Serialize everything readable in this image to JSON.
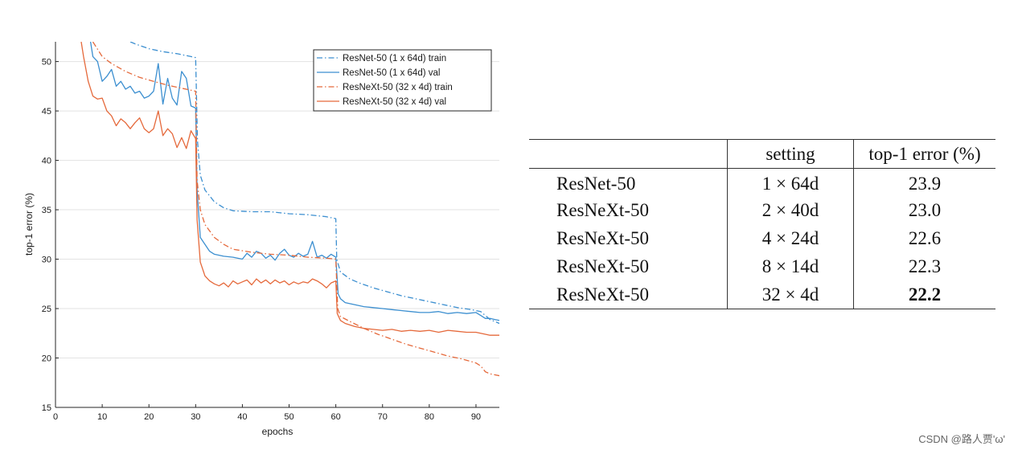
{
  "chart_data": {
    "type": "line",
    "title": "",
    "xlabel": "epochs",
    "ylabel": "top-1 error (%)",
    "xlim": [
      0,
      95
    ],
    "ylim": [
      15,
      52
    ],
    "xticks": [
      0,
      10,
      20,
      30,
      40,
      50,
      60,
      70,
      80,
      90
    ],
    "yticks": [
      15,
      20,
      25,
      30,
      35,
      40,
      45,
      50
    ],
    "grid": "horizontal",
    "legend_position": "top-right",
    "series": [
      {
        "name": "ResNet-50 (1 x 64d) train",
        "color": "#3c8fd0",
        "dash": "dashdot",
        "points": [
          [
            16,
            52
          ],
          [
            17,
            51.8
          ],
          [
            20,
            51.3
          ],
          [
            23,
            51
          ],
          [
            26,
            50.8
          ],
          [
            29,
            50.5
          ],
          [
            30,
            50.4
          ],
          [
            30.4,
            42
          ],
          [
            31,
            38.5
          ],
          [
            32,
            37
          ],
          [
            34,
            35.8
          ],
          [
            36,
            35.2
          ],
          [
            38,
            34.9
          ],
          [
            42,
            34.8
          ],
          [
            46,
            34.8
          ],
          [
            50,
            34.6
          ],
          [
            54,
            34.5
          ],
          [
            58,
            34.3
          ],
          [
            60,
            34.1
          ],
          [
            60.2,
            30
          ],
          [
            61,
            28.7
          ],
          [
            63,
            28
          ],
          [
            65,
            27.6
          ],
          [
            68,
            27.1
          ],
          [
            71,
            26.7
          ],
          [
            74,
            26.3
          ],
          [
            77,
            26
          ],
          [
            80,
            25.7
          ],
          [
            83,
            25.4
          ],
          [
            86,
            25.1
          ],
          [
            89,
            24.9
          ],
          [
            91,
            24.7
          ],
          [
            93,
            23.9
          ],
          [
            95,
            23.5
          ]
        ]
      },
      {
        "name": "ResNet-50 (1 x 64d) val",
        "color": "#3c8fd0",
        "dash": "solid",
        "points": [
          [
            7.5,
            52
          ],
          [
            8,
            50.5
          ],
          [
            9,
            50
          ],
          [
            10,
            48
          ],
          [
            11,
            48.5
          ],
          [
            12,
            49.2
          ],
          [
            13,
            47.5
          ],
          [
            14,
            48
          ],
          [
            15,
            47.2
          ],
          [
            16,
            47.5
          ],
          [
            17,
            46.8
          ],
          [
            18,
            47
          ],
          [
            19,
            46.3
          ],
          [
            20,
            46.5
          ],
          [
            21,
            47
          ],
          [
            22,
            49.8
          ],
          [
            23,
            45.7
          ],
          [
            24,
            48.3
          ],
          [
            25,
            46.3
          ],
          [
            26,
            45.6
          ],
          [
            27,
            49
          ],
          [
            28,
            48.3
          ],
          [
            29,
            45.5
          ],
          [
            30,
            45.3
          ],
          [
            30.3,
            37
          ],
          [
            31,
            32.2
          ],
          [
            32,
            31.5
          ],
          [
            33,
            30.8
          ],
          [
            34,
            30.5
          ],
          [
            36,
            30.3
          ],
          [
            38,
            30.2
          ],
          [
            40,
            30
          ],
          [
            41,
            30.6
          ],
          [
            42,
            30.2
          ],
          [
            43,
            30.8
          ],
          [
            44,
            30.6
          ],
          [
            45,
            30.1
          ],
          [
            46,
            30.4
          ],
          [
            47,
            29.9
          ],
          [
            48,
            30.6
          ],
          [
            49,
            31
          ],
          [
            50,
            30.4
          ],
          [
            51,
            30.2
          ],
          [
            52,
            30.6
          ],
          [
            53,
            30.3
          ],
          [
            54,
            30.5
          ],
          [
            55,
            31.8
          ],
          [
            56,
            30.2
          ],
          [
            57,
            30.4
          ],
          [
            58,
            30.1
          ],
          [
            59,
            30.5
          ],
          [
            60,
            30.2
          ],
          [
            60.5,
            26.5
          ],
          [
            61,
            26
          ],
          [
            62,
            25.6
          ],
          [
            64,
            25.4
          ],
          [
            66,
            25.2
          ],
          [
            68,
            25.1
          ],
          [
            70,
            25
          ],
          [
            72,
            24.9
          ],
          [
            74,
            24.8
          ],
          [
            76,
            24.7
          ],
          [
            78,
            24.6
          ],
          [
            80,
            24.6
          ],
          [
            82,
            24.7
          ],
          [
            84,
            24.5
          ],
          [
            86,
            24.6
          ],
          [
            88,
            24.5
          ],
          [
            90,
            24.6
          ],
          [
            91,
            24.3
          ],
          [
            92,
            24
          ],
          [
            93,
            24
          ],
          [
            94,
            23.9
          ],
          [
            95,
            23.8
          ]
        ]
      },
      {
        "name": "ResNeXt-50 (32 x 4d) train",
        "color": "#e5693b",
        "dash": "dashdot",
        "points": [
          [
            8,
            52
          ],
          [
            10,
            50.5
          ],
          [
            12,
            49.8
          ],
          [
            15,
            49
          ],
          [
            18,
            48.4
          ],
          [
            21,
            48
          ],
          [
            24,
            47.6
          ],
          [
            27,
            47.3
          ],
          [
            30,
            47
          ],
          [
            30.3,
            38
          ],
          [
            31,
            35
          ],
          [
            32,
            33.5
          ],
          [
            34,
            32.2
          ],
          [
            36,
            31.5
          ],
          [
            38,
            31
          ],
          [
            42,
            30.7
          ],
          [
            46,
            30.5
          ],
          [
            50,
            30.4
          ],
          [
            54,
            30.2
          ],
          [
            58,
            30.1
          ],
          [
            60,
            30
          ],
          [
            60.4,
            25
          ],
          [
            61,
            24.2
          ],
          [
            63,
            23.7
          ],
          [
            66,
            23
          ],
          [
            69,
            22.4
          ],
          [
            72,
            21.9
          ],
          [
            75,
            21.4
          ],
          [
            78,
            21
          ],
          [
            81,
            20.6
          ],
          [
            84,
            20.2
          ],
          [
            87,
            19.9
          ],
          [
            90,
            19.5
          ],
          [
            91,
            19.2
          ],
          [
            92,
            18.6
          ],
          [
            93,
            18.4
          ],
          [
            95,
            18.2
          ]
        ]
      },
      {
        "name": "ResNeXt-50 (32 x 4d) val",
        "color": "#e5693b",
        "dash": "solid",
        "points": [
          [
            5.5,
            52
          ],
          [
            6,
            50.5
          ],
          [
            7,
            48
          ],
          [
            8,
            46.5
          ],
          [
            9,
            46.2
          ],
          [
            10,
            46.3
          ],
          [
            11,
            45
          ],
          [
            12,
            44.5
          ],
          [
            13,
            43.5
          ],
          [
            14,
            44.2
          ],
          [
            15,
            43.8
          ],
          [
            16,
            43.2
          ],
          [
            17,
            43.8
          ],
          [
            18,
            44.3
          ],
          [
            19,
            43.2
          ],
          [
            20,
            42.8
          ],
          [
            21,
            43.2
          ],
          [
            22,
            45
          ],
          [
            23,
            42.5
          ],
          [
            24,
            43.2
          ],
          [
            25,
            42.7
          ],
          [
            26,
            41.3
          ],
          [
            27,
            42.3
          ],
          [
            28,
            41.2
          ],
          [
            29,
            43
          ],
          [
            30,
            42.2
          ],
          [
            30.3,
            34
          ],
          [
            31,
            29.7
          ],
          [
            32,
            28.3
          ],
          [
            33,
            27.8
          ],
          [
            34,
            27.5
          ],
          [
            35,
            27.3
          ],
          [
            36,
            27.6
          ],
          [
            37,
            27.2
          ],
          [
            38,
            27.8
          ],
          [
            39,
            27.5
          ],
          [
            40,
            27.7
          ],
          [
            41,
            27.9
          ],
          [
            42,
            27.4
          ],
          [
            43,
            28
          ],
          [
            44,
            27.6
          ],
          [
            45,
            27.9
          ],
          [
            46,
            27.5
          ],
          [
            47,
            27.9
          ],
          [
            48,
            27.6
          ],
          [
            49,
            27.8
          ],
          [
            50,
            27.4
          ],
          [
            51,
            27.7
          ],
          [
            52,
            27.5
          ],
          [
            53,
            27.7
          ],
          [
            54,
            27.6
          ],
          [
            55,
            28
          ],
          [
            56,
            27.8
          ],
          [
            57,
            27.5
          ],
          [
            58,
            27.1
          ],
          [
            59,
            27.6
          ],
          [
            60,
            27.8
          ],
          [
            60.3,
            24.5
          ],
          [
            61,
            23.8
          ],
          [
            62,
            23.5
          ],
          [
            64,
            23.2
          ],
          [
            66,
            23
          ],
          [
            68,
            22.9
          ],
          [
            70,
            22.8
          ],
          [
            72,
            22.9
          ],
          [
            74,
            22.7
          ],
          [
            76,
            22.8
          ],
          [
            78,
            22.7
          ],
          [
            80,
            22.8
          ],
          [
            82,
            22.6
          ],
          [
            84,
            22.8
          ],
          [
            86,
            22.7
          ],
          [
            88,
            22.6
          ],
          [
            90,
            22.6
          ],
          [
            92,
            22.4
          ],
          [
            93,
            22.3
          ],
          [
            95,
            22.3
          ]
        ]
      }
    ]
  },
  "table": {
    "headers": [
      "",
      "setting",
      "top-1 error (%)"
    ],
    "rows": [
      {
        "model": "ResNet-50",
        "setting": "1 × 64d",
        "error": "23.9",
        "bold": false
      },
      {
        "model": "ResNeXt-50",
        "setting": "2 × 40d",
        "error": "23.0",
        "bold": false
      },
      {
        "model": "ResNeXt-50",
        "setting": "4 × 24d",
        "error": "22.6",
        "bold": false
      },
      {
        "model": "ResNeXt-50",
        "setting": "8 × 14d",
        "error": "22.3",
        "bold": false
      },
      {
        "model": "ResNeXt-50",
        "setting": "32 × 4d",
        "error": "22.2",
        "bold": true
      }
    ]
  },
  "watermark": "CSDN @路人贾'ω'"
}
